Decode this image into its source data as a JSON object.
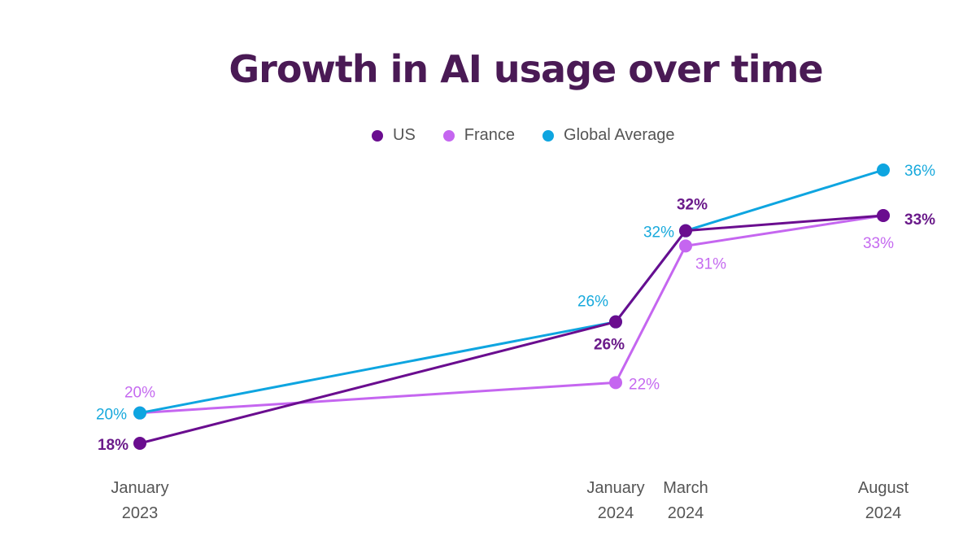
{
  "chart_data": {
    "type": "line",
    "title": "Growth in AI usage over time",
    "xlabel": "",
    "ylabel": "",
    "grid": false,
    "legend_position": "top-center",
    "categories": [
      {
        "line1": "January",
        "line2": "2023",
        "t": 0
      },
      {
        "line1": "January",
        "line2": "2024",
        "t": 12
      },
      {
        "line1": "March",
        "line2": "2024",
        "t": 14
      },
      {
        "line1": "August",
        "line2": "2024",
        "t": 19
      }
    ],
    "ylim": [
      15,
      38
    ],
    "series": [
      {
        "name": "US",
        "color": "#6a0d8f",
        "values": [
          18,
          26,
          32,
          33
        ],
        "labels": [
          "18%",
          "26%",
          "32%",
          "33%"
        ]
      },
      {
        "name": "France",
        "color": "#c566f0",
        "values": [
          20,
          22,
          31,
          33
        ],
        "labels": [
          "20%",
          "22%",
          "31%",
          "33%"
        ]
      },
      {
        "name": "Global Average",
        "color": "#0ea5e0",
        "values": [
          20,
          26,
          32,
          36
        ],
        "labels": [
          "20%",
          "26%",
          "32%",
          "36%"
        ]
      }
    ]
  }
}
